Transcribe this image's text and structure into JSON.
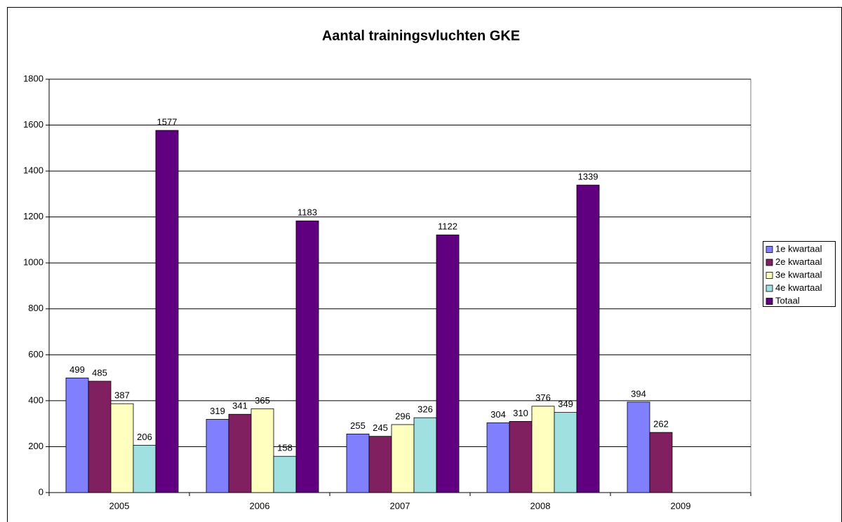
{
  "chart_data": {
    "type": "bar",
    "title": "Aantal trainingsvluchten GKE",
    "categories": [
      "2005",
      "2006",
      "2007",
      "2008",
      "2009"
    ],
    "series": [
      {
        "name": "1e kwartaal",
        "color": "#8080ff",
        "values": [
          499,
          319,
          255,
          304,
          394
        ]
      },
      {
        "name": "2e kwartaal",
        "color": "#802060",
        "values": [
          485,
          341,
          245,
          310,
          262
        ]
      },
      {
        "name": "3e kwartaal",
        "color": "#ffffc0",
        "values": [
          387,
          365,
          296,
          376,
          null
        ]
      },
      {
        "name": "4e kwartaal",
        "color": "#a0e0e0",
        "values": [
          206,
          158,
          326,
          349,
          null
        ]
      },
      {
        "name": "Totaal",
        "color": "#600080",
        "values": [
          1577,
          1183,
          1122,
          1339,
          null
        ]
      }
    ],
    "ylim": [
      0,
      1800
    ],
    "yticks": [
      0,
      200,
      400,
      600,
      800,
      1000,
      1200,
      1400,
      1600,
      1800
    ],
    "grid": true,
    "legend": "right"
  }
}
